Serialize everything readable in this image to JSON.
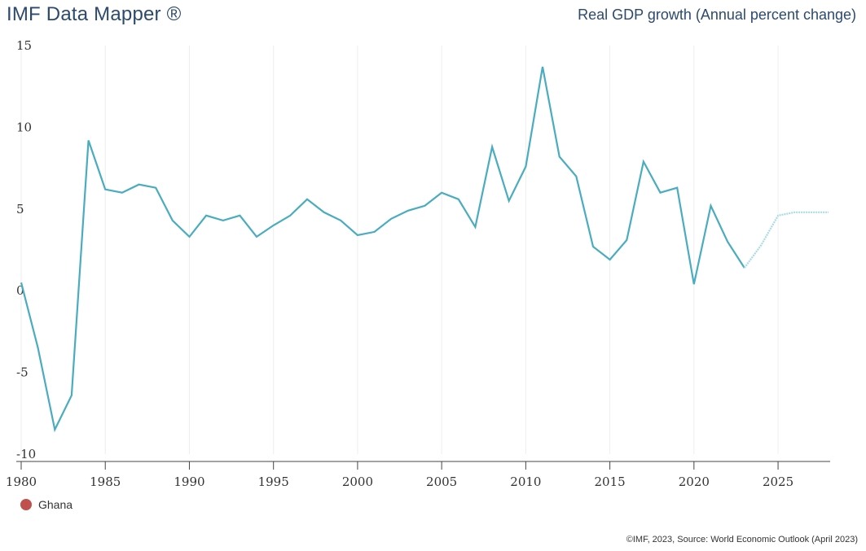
{
  "header": {
    "brand": "IMF Data Mapper ®",
    "subtitle": "Real GDP growth (Annual percent change)"
  },
  "legend": {
    "label": "Ghana",
    "color": "#c0504d"
  },
  "footer": {
    "credit": "©IMF, 2023, Source: World Economic Outlook (April 2023)"
  },
  "colors": {
    "line": "#4aacbf",
    "projection": "#a8dbe5",
    "grid": "#eeeeee"
  },
  "chart_data": {
    "type": "line",
    "title": "Real GDP growth (Annual percent change)",
    "xlabel": "",
    "ylabel": "",
    "xlim": [
      1980,
      2028
    ],
    "ylim": [
      -10,
      15
    ],
    "xticks": [
      1980,
      1985,
      1990,
      1995,
      2000,
      2005,
      2010,
      2015,
      2020,
      2025
    ],
    "yticks": [
      15,
      10,
      5,
      0,
      -5,
      -10
    ],
    "grid": "vertical",
    "legend_position": "bottom-left",
    "projection_start": 2023,
    "series": [
      {
        "name": "Ghana",
        "x": [
          1980,
          1981,
          1982,
          1983,
          1984,
          1985,
          1986,
          1987,
          1988,
          1989,
          1990,
          1991,
          1992,
          1993,
          1994,
          1995,
          1996,
          1997,
          1998,
          1999,
          2000,
          2001,
          2002,
          2003,
          2004,
          2005,
          2006,
          2007,
          2008,
          2009,
          2010,
          2011,
          2012,
          2013,
          2014,
          2015,
          2016,
          2017,
          2018,
          2019,
          2020,
          2021,
          2022,
          2023,
          2024,
          2025,
          2026,
          2027,
          2028
        ],
        "values": [
          0.5,
          -3.5,
          -8.5,
          -6.4,
          9.2,
          6.2,
          6.0,
          6.5,
          6.3,
          4.3,
          3.3,
          4.6,
          4.3,
          4.6,
          3.3,
          4.0,
          4.6,
          5.6,
          4.8,
          4.3,
          3.4,
          3.6,
          4.4,
          4.9,
          5.2,
          6.0,
          5.6,
          3.9,
          8.8,
          5.5,
          7.6,
          13.7,
          8.2,
          7.0,
          2.7,
          1.9,
          3.1,
          7.9,
          6.0,
          6.3,
          0.4,
          5.2,
          3.0,
          1.4,
          2.8,
          4.6,
          4.8,
          4.8,
          4.8
        ]
      }
    ]
  }
}
